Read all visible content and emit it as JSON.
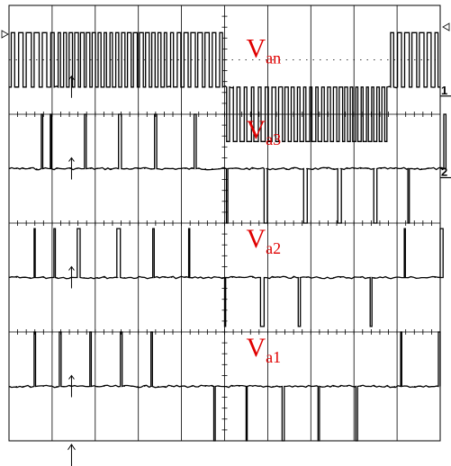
{
  "chart_data": {
    "type": "line",
    "title": "",
    "xlabel": "",
    "ylabel": "",
    "divisions": {
      "x": 10,
      "y": 8
    },
    "grid": "on",
    "trace_color": "#000000",
    "label_color": "#e00000",
    "channel_markers": [
      "1",
      "2"
    ],
    "series": [
      {
        "id": "van",
        "label_main": "V",
        "label_sub": "an",
        "baseline_div": 1.5,
        "pulse_div": 1.0,
        "segments": [
          {
            "from": 0.0,
            "to": 1.1,
            "sign": 1,
            "pulses": 6
          },
          {
            "from": 1.1,
            "to": 2.3,
            "sign": 1,
            "pulses": 9
          },
          {
            "from": 2.3,
            "to": 3.7,
            "sign": 1,
            "pulses": 10
          },
          {
            "from": 3.7,
            "to": 5.0,
            "sign": 1,
            "pulses": 8
          },
          {
            "from": 5.0,
            "to": 6.3,
            "sign": -1,
            "pulses": 8
          },
          {
            "from": 6.3,
            "to": 7.7,
            "sign": -1,
            "pulses": 10
          },
          {
            "from": 7.7,
            "to": 8.8,
            "sign": -1,
            "pulses": 9
          },
          {
            "from": 8.8,
            "to": 10.0,
            "sign": 1,
            "pulses": 7
          }
        ]
      },
      {
        "id": "va3",
        "label_main": "V",
        "label_sub": "a3",
        "baseline_div": 3.0,
        "pulse_div": 1.0,
        "pulses": [
          {
            "t": 0.9,
            "w": 0.04,
            "sign": 1
          },
          {
            "t": 1.15,
            "w": 0.03,
            "sign": 1
          },
          {
            "t": 2.1,
            "w": 0.05,
            "sign": 1
          },
          {
            "t": 3.05,
            "w": 0.08,
            "sign": 1
          },
          {
            "t": 4.05,
            "w": 0.06,
            "sign": 1
          },
          {
            "t": 5.15,
            "w": 0.06,
            "sign": 1
          },
          {
            "t": 6.05,
            "w": 0.04,
            "sign": -1
          },
          {
            "t": 7.1,
            "w": 0.09,
            "sign": -1
          },
          {
            "t": 8.2,
            "w": 0.1,
            "sign": -1
          },
          {
            "t": 9.15,
            "w": 0.1,
            "sign": -1
          },
          {
            "t": 10.15,
            "w": 0.09,
            "sign": -1
          },
          {
            "t": 11.1,
            "w": 0.04,
            "sign": -1
          },
          {
            "t": 12.1,
            "w": 0.06,
            "sign": 1
          }
        ]
      },
      {
        "id": "va2",
        "label_main": "V",
        "label_sub": "a2",
        "baseline_div": 5.0,
        "pulse_div": 0.9,
        "pulses": [
          {
            "t": 0.7,
            "w": 0.03,
            "sign": 1
          },
          {
            "t": 1.25,
            "w": 0.04,
            "sign": 1
          },
          {
            "t": 1.9,
            "w": 0.08,
            "sign": 1
          },
          {
            "t": 3.0,
            "w": 0.1,
            "sign": 1
          },
          {
            "t": 4.0,
            "w": 0.04,
            "sign": 1
          },
          {
            "t": 5.0,
            "w": 0.03,
            "sign": 1
          },
          {
            "t": 6.0,
            "w": 0.03,
            "sign": -1
          },
          {
            "t": 7.0,
            "w": 0.1,
            "sign": -1
          },
          {
            "t": 8.05,
            "w": 0.06,
            "sign": -1
          },
          {
            "t": 10.05,
            "w": 0.05,
            "sign": -1
          },
          {
            "t": 11.0,
            "w": 0.03,
            "sign": 1
          },
          {
            "t": 12.0,
            "w": 0.08,
            "sign": 1
          }
        ]
      },
      {
        "id": "va1",
        "label_main": "V",
        "label_sub": "a1",
        "baseline_div": 7.0,
        "pulse_div": 1.0,
        "pulses": [
          {
            "t": 0.7,
            "w": 0.04,
            "sign": 1
          },
          {
            "t": 1.4,
            "w": 0.05,
            "sign": 1
          },
          {
            "t": 2.25,
            "w": 0.04,
            "sign": 1
          },
          {
            "t": 3.1,
            "w": 0.05,
            "sign": 1
          },
          {
            "t": 3.95,
            "w": 0.04,
            "sign": 1
          },
          {
            "t": 5.7,
            "w": 0.04,
            "sign": -1
          },
          {
            "t": 6.6,
            "w": 0.03,
            "sign": -1
          },
          {
            "t": 7.6,
            "w": 0.06,
            "sign": -1
          },
          {
            "t": 8.6,
            "w": 0.04,
            "sign": -1
          },
          {
            "t": 9.65,
            "w": 0.05,
            "sign": -1
          },
          {
            "t": 10.9,
            "w": 0.03,
            "sign": 1
          },
          {
            "t": 11.95,
            "w": 0.05,
            "sign": 1
          }
        ]
      }
    ],
    "cursor_x_div": 1.45
  }
}
